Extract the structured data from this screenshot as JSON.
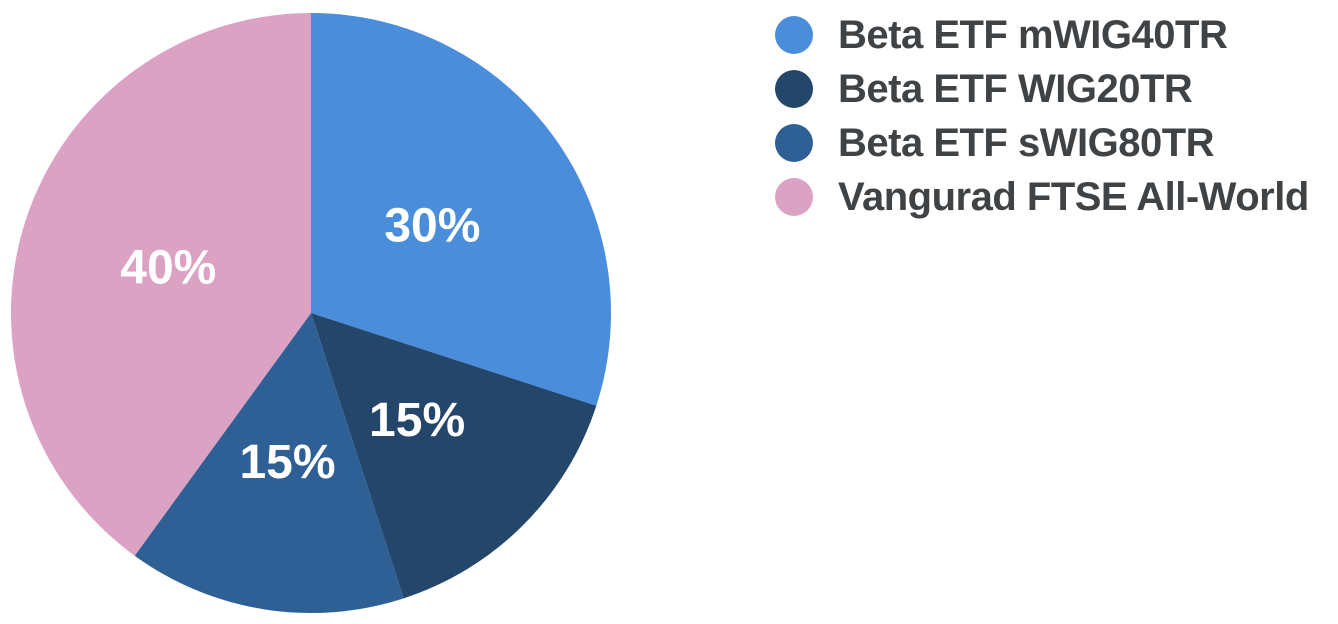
{
  "chart_data": {
    "type": "pie",
    "title": "",
    "categories": [
      "Beta ETF mWIG40TR",
      "Beta ETF WIG20TR",
      "Beta ETF sWIG80TR",
      "Vangurad FTSE All-World"
    ],
    "values": [
      30,
      15,
      15,
      40
    ],
    "slice_labels": [
      "30%",
      "15%",
      "15%",
      "40%"
    ],
    "colors": [
      "#4A8EDB",
      "#24466B",
      "#2F6095",
      "#DBA2C4"
    ],
    "slice_label_color": "#FFFFFF",
    "legend_text_color": "#404346",
    "background_color": "#FFFFFF",
    "start_angle_deg": 0,
    "direction": "clockwise",
    "legend_position": "right",
    "grid": false
  }
}
